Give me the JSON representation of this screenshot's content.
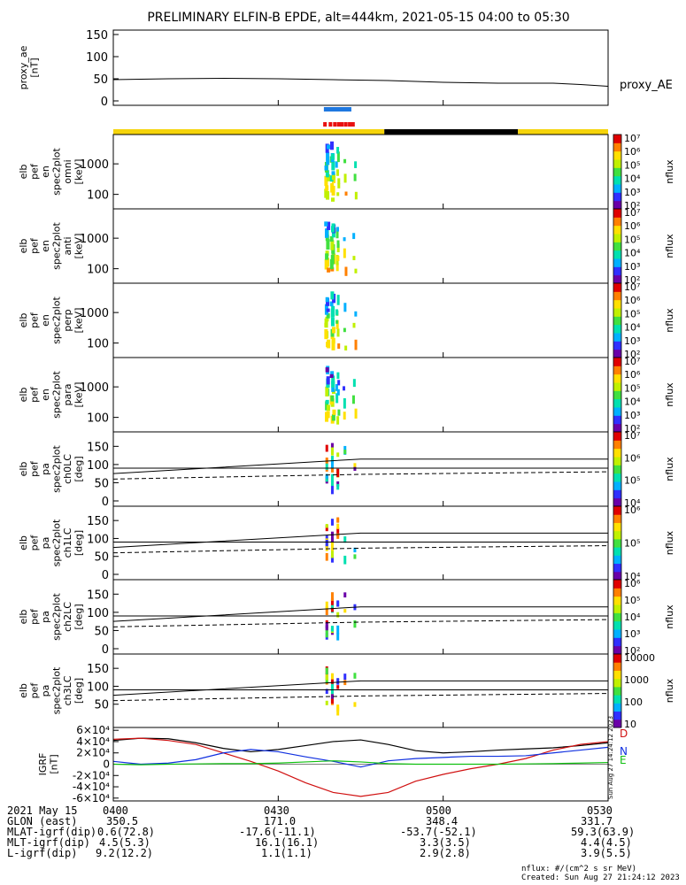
{
  "title": "PRELIMINARY ELFIN-B EPDE, alt=444km, 2021-05-15 04:00 to 05:30",
  "time_range_min": [
    0,
    90
  ],
  "colors": {
    "status_yellow": "#f5d40b",
    "status_black": "#000000",
    "blue_bar": "#1f78e0",
    "red_bar": "#e81010",
    "igrf_total": "#000000",
    "igrf_d": "#d01010",
    "igrf_n": "#1030e0",
    "igrf_e": "#10c010"
  },
  "status_bar": {
    "segments": [
      {
        "color": "yellow",
        "t0": 0,
        "t1": 49.3
      },
      {
        "color": "black",
        "t0": 49.3,
        "t1": 73.6
      },
      {
        "color": "yellow",
        "t0": 73.6,
        "t1": 90
      }
    ],
    "blue_interval": [
      38.3,
      43.3
    ],
    "red_ticks": [
      38.5,
      39.5,
      40.3,
      41.0,
      41.6,
      42.3,
      43.0,
      43.6
    ]
  },
  "panels": [
    {
      "id": "proxy_ae",
      "ylabel_lines": [
        "proxy_ae",
        "[nT]"
      ],
      "yticks": [
        "0",
        "50",
        "100",
        "150"
      ],
      "right_label": "proxy_AE"
    },
    {
      "id": "en_omni",
      "ylabel_lines": [
        "elb",
        "pef",
        "en",
        "spec2plot",
        "omni",
        "[keV]"
      ],
      "yticks": [
        "100",
        "1000"
      ],
      "cbar_ticks": [
        "10²",
        "10³",
        "10⁴",
        "10⁵",
        "10⁶",
        "10⁷"
      ],
      "cbar_label": "nflux"
    },
    {
      "id": "en_anti",
      "ylabel_lines": [
        "elb",
        "pef",
        "en",
        "spec2plot",
        "anti",
        "[keV]"
      ],
      "yticks": [
        "100",
        "1000"
      ],
      "cbar_ticks": [
        "10²",
        "10³",
        "10⁴",
        "10⁵",
        "10⁶",
        "10⁷"
      ],
      "cbar_label": "nflux"
    },
    {
      "id": "en_perp",
      "ylabel_lines": [
        "elb",
        "pef",
        "en",
        "spec2plot",
        "perp",
        "[keV]"
      ],
      "yticks": [
        "100",
        "1000"
      ],
      "cbar_ticks": [
        "10²",
        "10³",
        "10⁴",
        "10⁵",
        "10⁶",
        "10⁷"
      ],
      "cbar_label": "nflux"
    },
    {
      "id": "en_para",
      "ylabel_lines": [
        "elb",
        "pef",
        "en",
        "spec2plot",
        "para",
        "[keV]"
      ],
      "yticks": [
        "100",
        "1000"
      ],
      "cbar_ticks": [
        "10²",
        "10³",
        "10⁴",
        "10⁵",
        "10⁶",
        "10⁷"
      ],
      "cbar_label": "nflux"
    },
    {
      "id": "pa_ch0",
      "ylabel_lines": [
        "elb",
        "pef",
        "pa",
        "spec2plot",
        "ch0LC",
        "[deg]"
      ],
      "yticks": [
        "0",
        "50",
        "100",
        "150"
      ],
      "cbar_ticks": [
        "10⁴",
        "10⁵",
        "10⁶",
        "10⁷"
      ],
      "cbar_label": "nflux"
    },
    {
      "id": "pa_ch1",
      "ylabel_lines": [
        "elb",
        "pef",
        "pa",
        "spec2plot",
        "ch1LC",
        "[deg]"
      ],
      "yticks": [
        "0",
        "50",
        "100",
        "150"
      ],
      "cbar_ticks": [
        "10⁴",
        "10⁵",
        "10⁶"
      ],
      "cbar_label": "nflux"
    },
    {
      "id": "pa_ch2",
      "ylabel_lines": [
        "elb",
        "pef",
        "pa",
        "spec2plot",
        "ch2LC",
        "[deg]"
      ],
      "yticks": [
        "0",
        "50",
        "100",
        "150"
      ],
      "cbar_ticks": [
        "10²",
        "10³",
        "10⁴",
        "10⁵",
        "10⁶"
      ],
      "cbar_label": "nflux"
    },
    {
      "id": "pa_ch3",
      "ylabel_lines": [
        "elb",
        "pef",
        "pa",
        "spec2plot",
        "ch3LC",
        "[deg]"
      ],
      "yticks": [
        "50",
        "100",
        "150"
      ],
      "cbar_ticks": [
        "10",
        "100",
        "1000",
        "10000"
      ],
      "cbar_label": "nflux"
    },
    {
      "id": "igrf",
      "ylabel_lines": [
        "IGRF",
        "[nT]"
      ],
      "yticks": [
        "-6×10⁴",
        "-4×10⁴",
        "-2×10⁴",
        "0",
        "2×10⁴",
        "4×10⁴",
        "6×10⁴"
      ],
      "legend": [
        "D",
        "N",
        "E"
      ],
      "side_note": "Sun Aug 27 14:24:12 2023"
    }
  ],
  "chart_data": [
    {
      "type": "line",
      "panel": "proxy_ae",
      "ylabel": "proxy_ae [nT]",
      "ylim": [
        0,
        150
      ],
      "x": [
        0,
        10,
        20,
        30,
        40,
        50,
        60,
        70,
        80,
        85,
        90
      ],
      "series": [
        {
          "name": "proxy_AE",
          "values": [
            48,
            50,
            51,
            50,
            48,
            46,
            42,
            40,
            40,
            37,
            33
          ]
        }
      ]
    },
    {
      "type": "line",
      "panel": "pa_ch0",
      "ylabel": "[deg]",
      "ylim": [
        0,
        180
      ],
      "x": [
        0,
        45,
        90
      ],
      "series": [
        {
          "values": [
            75,
            115,
            115
          ]
        },
        {
          "values": [
            60,
            73,
            80
          ]
        },
        {
          "values": [
            90,
            90,
            90
          ]
        }
      ]
    },
    {
      "type": "line",
      "panel": "pa_ch1",
      "ylabel": "[deg]",
      "ylim": [
        0,
        180
      ],
      "x": [
        0,
        45,
        90
      ],
      "series": [
        {
          "values": [
            75,
            115,
            115
          ]
        },
        {
          "values": [
            60,
            73,
            80
          ]
        },
        {
          "values": [
            90,
            90,
            90
          ]
        }
      ]
    },
    {
      "type": "line",
      "panel": "pa_ch2",
      "ylabel": "[deg]",
      "ylim": [
        0,
        180
      ],
      "x": [
        0,
        45,
        90
      ],
      "series": [
        {
          "values": [
            75,
            115,
            115
          ]
        },
        {
          "values": [
            60,
            73,
            80
          ]
        },
        {
          "values": [
            90,
            90,
            90
          ]
        }
      ]
    },
    {
      "type": "line",
      "panel": "pa_ch3",
      "ylabel": "[deg]",
      "ylim": [
        0,
        180
      ],
      "x": [
        0,
        45,
        90
      ],
      "series": [
        {
          "values": [
            75,
            115,
            115
          ]
        },
        {
          "values": [
            60,
            73,
            80
          ]
        },
        {
          "values": [
            90,
            90,
            90
          ]
        }
      ]
    },
    {
      "type": "line",
      "panel": "igrf",
      "ylabel": "IGRF [nT]",
      "ylim": [
        -65000,
        65000
      ],
      "x": [
        0,
        5,
        10,
        15,
        20,
        25,
        30,
        35,
        40,
        45,
        50,
        55,
        60,
        65,
        70,
        75,
        80,
        85,
        90
      ],
      "series": [
        {
          "values": [
            42000,
            46000,
            45000,
            38000,
            28000,
            22000,
            26000,
            33000,
            40000,
            43000,
            35000,
            24000,
            20000,
            22000,
            25000,
            27000,
            29000,
            33000,
            38000
          ]
        },
        {
          "name": "D",
          "values": [
            44000,
            46000,
            42000,
            35000,
            20000,
            5000,
            -12000,
            -33000,
            -50000,
            -57000,
            -50000,
            -30000,
            -18000,
            -8000,
            0,
            10000,
            25000,
            35000,
            40000
          ]
        },
        {
          "name": "N",
          "values": [
            5000,
            0,
            2000,
            8000,
            20000,
            26000,
            22000,
            13000,
            5000,
            -5000,
            6000,
            10000,
            12000,
            14000,
            14000,
            15000,
            20000,
            25000,
            30000
          ]
        },
        {
          "name": "E",
          "values": [
            0,
            -1000,
            0,
            500,
            1000,
            1000,
            2000,
            4000,
            6000,
            4000,
            1000,
            0,
            0,
            0,
            0,
            500,
            1000,
            2000,
            3000
          ]
        }
      ]
    }
  ],
  "spectra": {
    "energy_bursts": [
      {
        "t": 38.6,
        "kind": "dense"
      },
      {
        "t": 39.6,
        "kind": "dense"
      },
      {
        "t": 40.6,
        "kind": "medium"
      },
      {
        "t": 41.9,
        "kind": "sparse"
      },
      {
        "t": 43.7,
        "kind": "sparse"
      }
    ],
    "palette": [
      "#6a00a8",
      "#3030ff",
      "#00b0ff",
      "#00e0b0",
      "#40e040",
      "#c0f000",
      "#ffe000",
      "#ff8000",
      "#e00000"
    ]
  },
  "footer": {
    "rows": [
      [
        "2021 May 15",
        "0400",
        "0430",
        "0500",
        "0530"
      ],
      [
        "GLON (east)",
        "350.5",
        "171.0",
        "348.4",
        "331.7"
      ],
      [
        "MLAT-igrf(dip)",
        "0.6(72.8)",
        "-17.6(-11.1)",
        "-53.7(-52.1)",
        "59.3(63.9)"
      ],
      [
        "MLT-igrf(dip)",
        "4.5(5.3)",
        "16.1(16.1)",
        "3.3(3.5)",
        "4.4(4.5)"
      ],
      [
        "L-igrf(dip)",
        "9.2(12.2)",
        "1.1(1.1)",
        "2.9(2.8)",
        "3.9(5.5)"
      ]
    ],
    "nflux_units": "nflux: #/(cm^2 s sr MeV)",
    "created": "Created: Sun Aug 27 21:24:12 2023"
  }
}
